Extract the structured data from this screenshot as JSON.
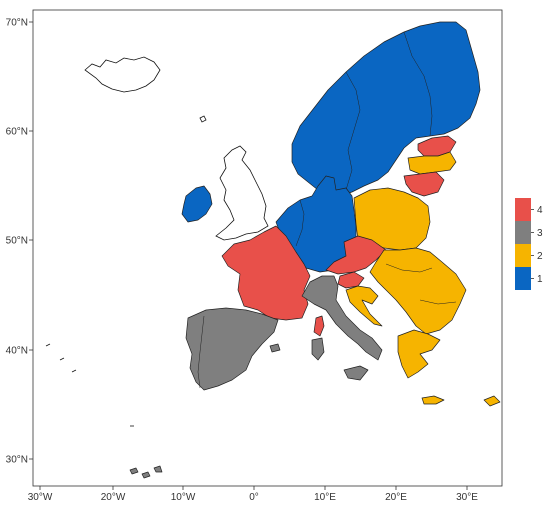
{
  "map": {
    "x_ticks": [
      "30°W",
      "20°W",
      "10°W",
      "0°",
      "10°E",
      "20°E",
      "30°E"
    ],
    "y_ticks": [
      "70°N",
      "60°N",
      "50°N",
      "40°N",
      "30°N"
    ]
  },
  "colors": {
    "c1": "#0a66c2",
    "c2": "#f6b400",
    "c3": "#7f7f7f",
    "c4": "#e8504a"
  },
  "legend": {
    "items": [
      {
        "label": "4",
        "color": "#e8504a"
      },
      {
        "label": "3",
        "color": "#7f7f7f"
      },
      {
        "label": "2",
        "color": "#f6b400"
      },
      {
        "label": "1",
        "color": "#0a66c2"
      }
    ]
  },
  "regions": {
    "nordic": "1",
    "ireland": "1",
    "benelux_germany_denmark": "1",
    "france": "4",
    "estonia": "4",
    "latvia_lithuania": "2",
    "czechia_austria": "4",
    "slovenia": "4",
    "croatia": "2",
    "poland_hungary_etc": "2",
    "balkans_greece": "2",
    "iberia": "3",
    "italy": "3",
    "corsica": "4"
  }
}
